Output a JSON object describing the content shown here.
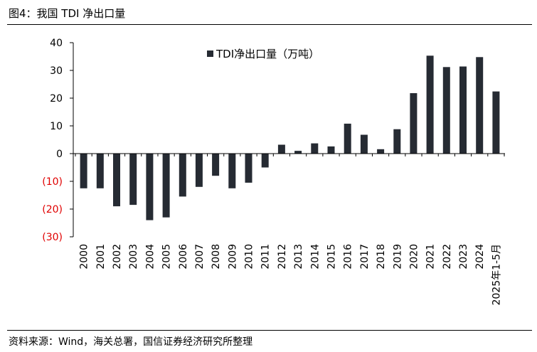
{
  "figure_title": "图4：我国 TDI 净出口量",
  "source_note": "资料来源：Wind，海关总署，国信证券经济研究所整理",
  "colors": {
    "bar": "#262b33",
    "axis": "#000000",
    "negative_label": "#e00000",
    "positive_label": "#000000"
  },
  "chart_data": {
    "type": "bar",
    "categories": [
      "2000",
      "2001",
      "2002",
      "2003",
      "2004",
      "2005",
      "2006",
      "2007",
      "2008",
      "2009",
      "2010",
      "2011",
      "2012",
      "2013",
      "2014",
      "2015",
      "2016",
      "2017",
      "2018",
      "2019",
      "2020",
      "2021",
      "2022",
      "2023",
      "2024",
      "2025年1-5月"
    ],
    "series": [
      {
        "name": "TDI净出口量（万吨）",
        "values": [
          -12.5,
          -12.5,
          -19,
          -18.5,
          -24,
          -23,
          -15.5,
          -12,
          -8,
          -12.5,
          -10.5,
          -5,
          3.2,
          1,
          3.7,
          2.6,
          10.8,
          6.8,
          1.6,
          8.8,
          21.8,
          35.3,
          31.2,
          31.4,
          34.8,
          22.4
        ]
      }
    ],
    "ylim": [
      -30,
      40
    ],
    "yticks": [
      40,
      30,
      20,
      10,
      0,
      -10,
      -20,
      -30
    ],
    "ytick_labels": [
      "40",
      "30",
      "20",
      "10",
      "0",
      "(10)",
      "(20)",
      "(30)"
    ],
    "legend_position": "top-center",
    "grid": false
  }
}
